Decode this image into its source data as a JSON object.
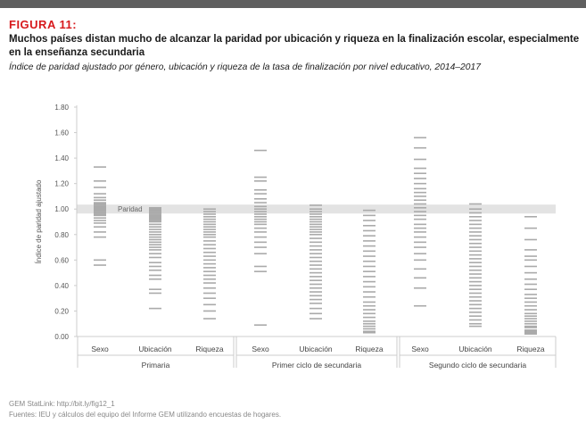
{
  "figure_label": "FIGURA 11:",
  "headline": "Muchos países distan mucho de alcanzar la paridad por ubicación y riqueza en la finalización escolar, especialmente en la enseñanza secundaria",
  "subtitle": "Índice de paridad ajustado por género, ubicación y riqueza de la tasa de finalización por nivel educativo, 2014–2017",
  "footer": {
    "statlink": "GEM StatLink: http://bit.ly/fig12_1",
    "sources": "Fuentes: IEU y cálculos del equipo del Informe GEM utilizando encuestas de hogares."
  },
  "colors": {
    "bar_line": "#aaaaaa",
    "parity_band": "#e3e3e3",
    "axis": "#cccccc",
    "title_red": "#d7191c"
  },
  "chart_data": {
    "type": "strip",
    "title": "Índice de paridad ajustado por género, ubicación y riqueza de la tasa de finalización por nivel educativo, 2014–2017",
    "ylabel": "Índice de paridad ajustado",
    "ylim": [
      0,
      1.8
    ],
    "yticks": [
      "0.00",
      "0.20",
      "0.40",
      "0.60",
      "0.80",
      "1.00",
      "1.20",
      "1.40",
      "1.60",
      "1.80"
    ],
    "parity_value": 1.0,
    "parity_label": "Paridad",
    "groups": [
      {
        "name": "Primaria",
        "categories": [
          {
            "name": "Sexo",
            "values": [
              1.33,
              1.22,
              1.17,
              1.12,
              1.09,
              1.07,
              1.05,
              1.04,
              1.03,
              1.02,
              1.01,
              1.0,
              0.99,
              0.98,
              0.97,
              0.96,
              0.95,
              0.93,
              0.91,
              0.89,
              0.86,
              0.82,
              0.78,
              0.6,
              0.56
            ]
          },
          {
            "name": "Ubicación",
            "values": [
              1.01,
              1.0,
              0.99,
              0.98,
              0.97,
              0.96,
              0.95,
              0.94,
              0.93,
              0.92,
              0.91,
              0.9,
              0.88,
              0.86,
              0.84,
              0.82,
              0.8,
              0.78,
              0.76,
              0.74,
              0.72,
              0.7,
              0.68,
              0.65,
              0.62,
              0.58,
              0.55,
              0.52,
              0.48,
              0.45,
              0.37,
              0.34,
              0.22
            ]
          },
          {
            "name": "Riqueza",
            "values": [
              1.0,
              0.98,
              0.96,
              0.94,
              0.92,
              0.9,
              0.88,
              0.86,
              0.84,
              0.82,
              0.8,
              0.78,
              0.75,
              0.72,
              0.69,
              0.66,
              0.63,
              0.6,
              0.57,
              0.54,
              0.51,
              0.48,
              0.45,
              0.42,
              0.38,
              0.34,
              0.3,
              0.25,
              0.2,
              0.14
            ]
          }
        ]
      },
      {
        "name": "Primer ciclo de secundaria",
        "categories": [
          {
            "name": "Sexo",
            "values": [
              1.46,
              1.25,
              1.22,
              1.15,
              1.12,
              1.08,
              1.05,
              1.02,
              1.0,
              0.98,
              0.96,
              0.94,
              0.92,
              0.9,
              0.88,
              0.85,
              0.82,
              0.78,
              0.74,
              0.7,
              0.65,
              0.55,
              0.51,
              0.09
            ]
          },
          {
            "name": "Ubicación",
            "values": [
              1.03,
              1.0,
              0.98,
              0.96,
              0.94,
              0.92,
              0.9,
              0.88,
              0.86,
              0.84,
              0.82,
              0.8,
              0.77,
              0.74,
              0.71,
              0.68,
              0.65,
              0.62,
              0.59,
              0.56,
              0.53,
              0.5,
              0.47,
              0.44,
              0.41,
              0.38,
              0.35,
              0.32,
              0.29,
              0.26,
              0.22,
              0.18,
              0.14
            ]
          },
          {
            "name": "Riqueza",
            "values": [
              0.99,
              0.95,
              0.91,
              0.87,
              0.83,
              0.79,
              0.75,
              0.71,
              0.67,
              0.63,
              0.59,
              0.55,
              0.51,
              0.47,
              0.43,
              0.39,
              0.35,
              0.31,
              0.27,
              0.24,
              0.21,
              0.18,
              0.15,
              0.12,
              0.1,
              0.08,
              0.06,
              0.04,
              0.03
            ]
          }
        ]
      },
      {
        "name": "Segundo ciclo de secundaria",
        "categories": [
          {
            "name": "Sexo",
            "values": [
              1.56,
              1.48,
              1.39,
              1.32,
              1.28,
              1.24,
              1.2,
              1.16,
              1.13,
              1.1,
              1.07,
              1.04,
              1.01,
              0.98,
              0.95,
              0.92,
              0.88,
              0.85,
              0.82,
              0.78,
              0.74,
              0.7,
              0.65,
              0.6,
              0.53,
              0.46,
              0.38,
              0.24
            ]
          },
          {
            "name": "Ubicación",
            "values": [
              1.04,
              1.0,
              0.97,
              0.94,
              0.91,
              0.88,
              0.85,
              0.82,
              0.79,
              0.76,
              0.73,
              0.7,
              0.67,
              0.64,
              0.61,
              0.58,
              0.55,
              0.52,
              0.49,
              0.46,
              0.43,
              0.4,
              0.37,
              0.34,
              0.31,
              0.28,
              0.25,
              0.22,
              0.19,
              0.16,
              0.13,
              0.1,
              0.08
            ]
          },
          {
            "name": "Riqueza",
            "values": [
              0.94,
              0.85,
              0.76,
              0.68,
              0.63,
              0.6,
              0.55,
              0.5,
              0.45,
              0.41,
              0.37,
              0.33,
              0.3,
              0.27,
              0.24,
              0.21,
              0.18,
              0.16,
              0.14,
              0.12,
              0.1,
              0.08,
              0.07,
              0.05,
              0.04,
              0.03,
              0.02
            ]
          }
        ]
      }
    ]
  }
}
